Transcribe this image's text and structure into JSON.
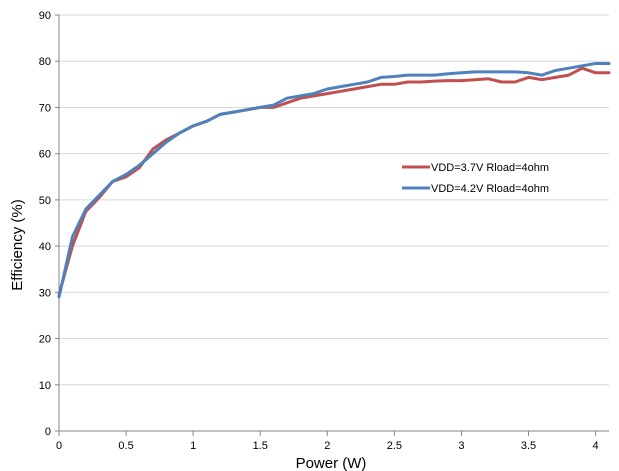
{
  "chart_data": {
    "type": "line",
    "title": "",
    "xlabel": "Power (W)",
    "ylabel": "Efficiency (%)",
    "xlim": [
      0,
      4.1
    ],
    "ylim": [
      0,
      90
    ],
    "grid": "horizontal",
    "legend_position": "center-right",
    "x_ticks": [
      0,
      0.5,
      1,
      1.5,
      2,
      2.5,
      3,
      3.5,
      4
    ],
    "x_tick_labels": [
      "0",
      "0.5",
      "1",
      "1.5",
      "2",
      "2.5",
      "3",
      "3.5",
      "4"
    ],
    "y_ticks": [
      0,
      10,
      20,
      30,
      40,
      50,
      60,
      70,
      80,
      90
    ],
    "y_tick_labels": [
      "0",
      "10",
      "20",
      "30",
      "40",
      "50",
      "60",
      "70",
      "80",
      "90"
    ],
    "series": [
      {
        "name": "VDD=3.7V Rload=4ohm",
        "color": "#c0504d",
        "x": [
          0,
          0.1,
          0.2,
          0.3,
          0.4,
          0.5,
          0.6,
          0.7,
          0.8,
          0.9,
          1.0,
          1.1,
          1.2,
          1.3,
          1.4,
          1.5,
          1.6,
          1.7,
          1.8,
          1.9,
          2.0,
          2.1,
          2.2,
          2.3,
          2.4,
          2.5,
          2.6,
          2.7,
          2.8,
          2.9,
          3.0,
          3.1,
          3.2,
          3.3,
          3.4,
          3.5,
          3.6,
          3.7,
          3.8,
          3.9,
          4.0,
          4.1
        ],
        "y": [
          29.5,
          40.0,
          47.5,
          50.5,
          54.0,
          55.0,
          57.0,
          61.0,
          63.0,
          64.5,
          66.0,
          67.0,
          68.5,
          69.0,
          69.5,
          70.0,
          70.0,
          71.0,
          72.0,
          72.5,
          73.0,
          73.5,
          74.0,
          74.5,
          75.0,
          75.0,
          75.5,
          75.5,
          75.7,
          75.8,
          75.8,
          76.0,
          76.2,
          75.5,
          75.5,
          76.5,
          76.0,
          76.5,
          77.0,
          78.5,
          77.5,
          77.5
        ]
      },
      {
        "name": "VDD=4.2V Rload=4ohm",
        "color": "#4f81bd",
        "x": [
          0,
          0.1,
          0.2,
          0.3,
          0.4,
          0.5,
          0.6,
          0.7,
          0.8,
          0.9,
          1.0,
          1.1,
          1.2,
          1.3,
          1.4,
          1.5,
          1.6,
          1.7,
          1.8,
          1.9,
          2.0,
          2.1,
          2.2,
          2.3,
          2.4,
          2.5,
          2.6,
          2.7,
          2.8,
          2.9,
          3.0,
          3.1,
          3.2,
          3.3,
          3.4,
          3.5,
          3.6,
          3.7,
          3.8,
          3.9,
          4.0,
          4.1
        ],
        "y": [
          29.0,
          42.0,
          48.0,
          51.0,
          54.0,
          55.5,
          57.5,
          60.0,
          62.5,
          64.5,
          66.0,
          67.0,
          68.5,
          69.0,
          69.5,
          70.0,
          70.5,
          72.0,
          72.5,
          73.0,
          74.0,
          74.5,
          75.0,
          75.5,
          76.5,
          76.7,
          77.0,
          77.0,
          77.0,
          77.3,
          77.5,
          77.7,
          77.7,
          77.7,
          77.7,
          77.5,
          77.0,
          78.0,
          78.5,
          79.0,
          79.5,
          79.5
        ]
      }
    ]
  }
}
